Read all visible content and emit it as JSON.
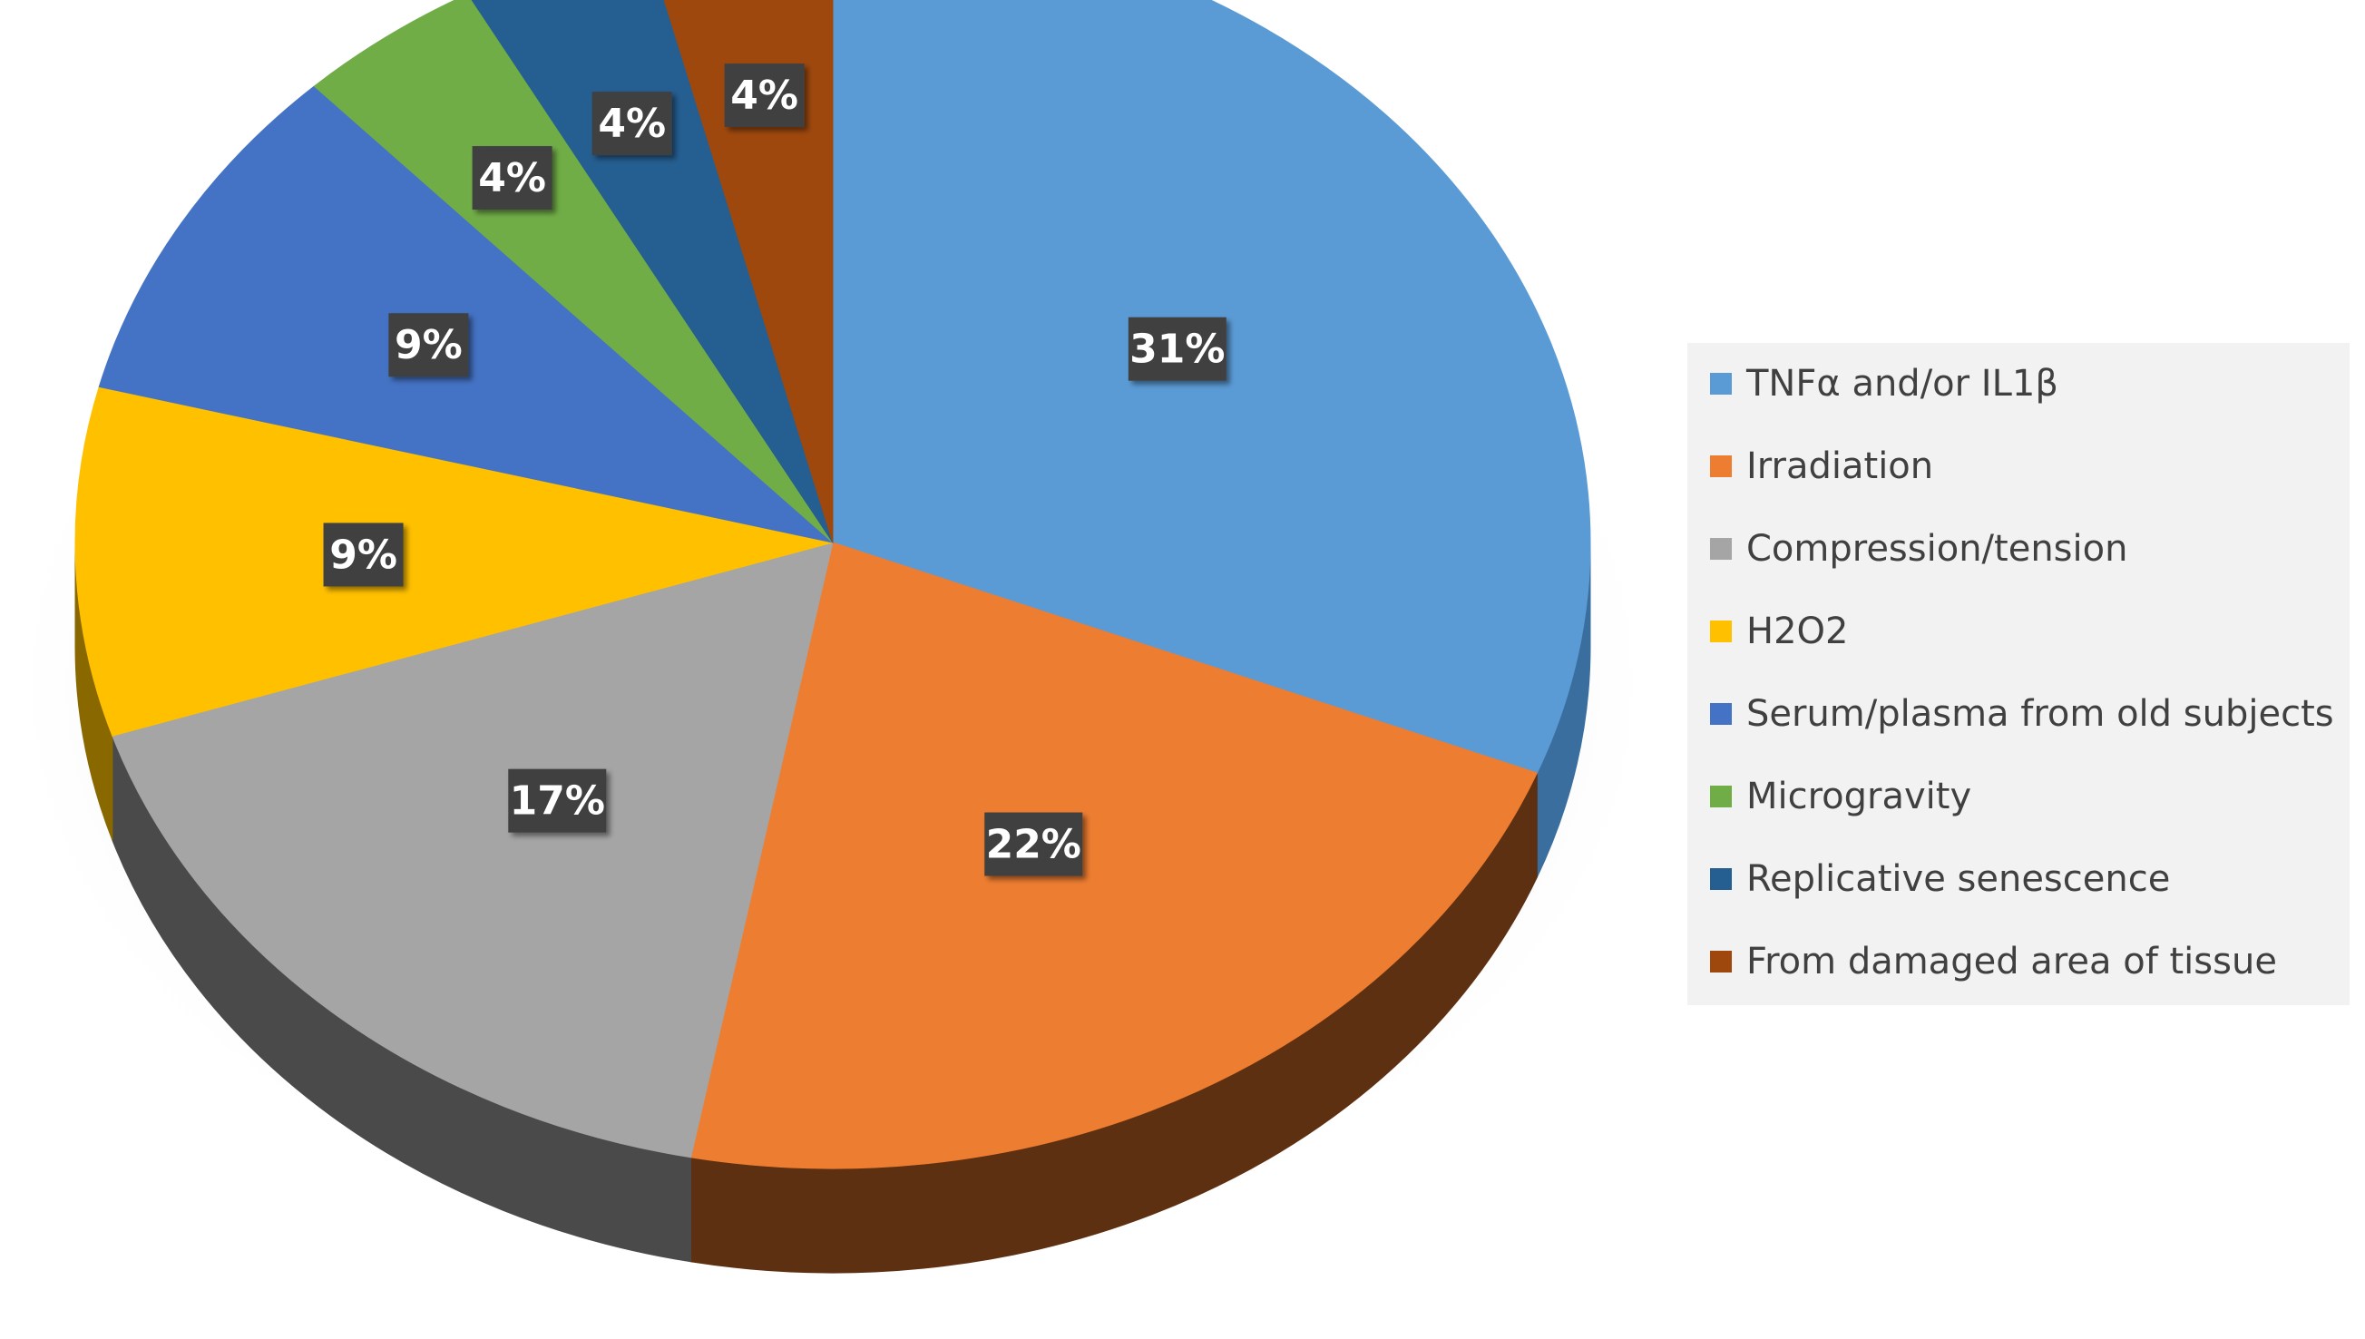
{
  "chart_data": {
    "type": "pie",
    "title": "",
    "legend_position": "right",
    "slices": [
      {
        "label": "TNFα and/or IL1β",
        "value": 31,
        "data_label": "31%",
        "color": "#5B9BD5",
        "side_color": "#3A6E9E"
      },
      {
        "label": "Irradiation",
        "value": 22,
        "data_label": "22%",
        "color": "#ED7D31",
        "side_color": "#5E3012"
      },
      {
        "label": "Compression/tension",
        "value": 17,
        "data_label": "17%",
        "color": "#A5A5A5",
        "side_color": "#4A4A4A"
      },
      {
        "label": "H2O2",
        "value": 9,
        "data_label": "9%",
        "color": "#FFC000",
        "side_color": "#8A6800"
      },
      {
        "label": "Serum/plasma from old subjects",
        "value": 9,
        "data_label": "9%",
        "color": "#4472C4",
        "side_color": "#23407A"
      },
      {
        "label": "Microgravity",
        "value": 4,
        "data_label": "4%",
        "color": "#70AD47",
        "side_color": "#3D6425"
      },
      {
        "label": "Replicative senescence",
        "value": 4,
        "data_label": "4%",
        "color": "#255E91",
        "side_color": "#143755"
      },
      {
        "label": "From damaged area of tissue",
        "value": 4,
        "data_label": "4%",
        "color": "#9E480E",
        "side_color": "#5A2708"
      }
    ]
  }
}
